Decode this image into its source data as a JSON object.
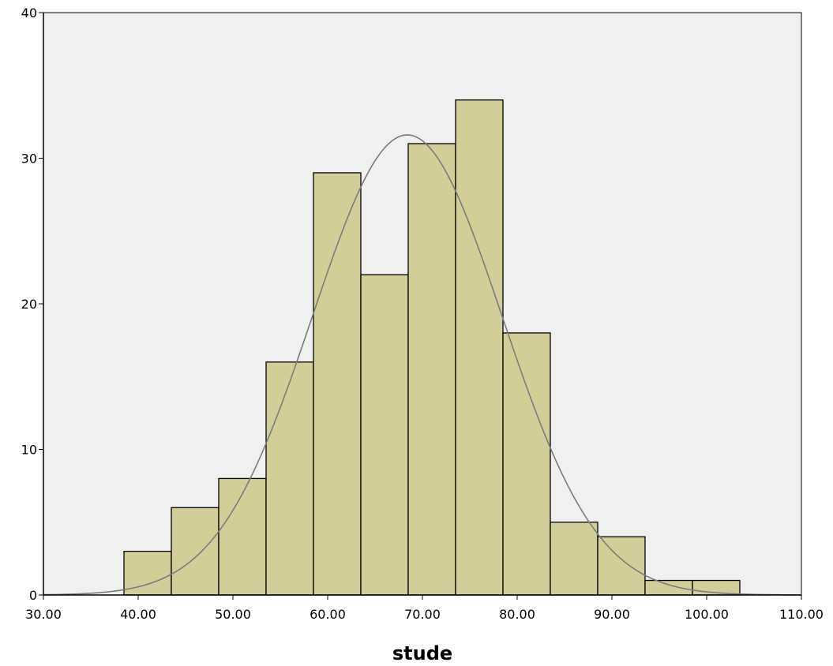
{
  "chart_data": {
    "type": "bar",
    "xlabel": "stude",
    "ylabel": "",
    "xlim": [
      30,
      110
    ],
    "ylim": [
      0,
      40
    ],
    "x_ticks": [
      "30.00",
      "40.00",
      "50.00",
      "60.00",
      "70.00",
      "80.00",
      "90.00",
      "100.00",
      "110.00"
    ],
    "y_ticks": [
      "0",
      "10",
      "20",
      "30",
      "40"
    ],
    "bins": [
      {
        "start": 38.5,
        "end": 43.5,
        "count": 3
      },
      {
        "start": 43.5,
        "end": 48.5,
        "count": 6
      },
      {
        "start": 48.5,
        "end": 53.5,
        "count": 8
      },
      {
        "start": 53.5,
        "end": 58.5,
        "count": 16
      },
      {
        "start": 58.5,
        "end": 63.5,
        "count": 29
      },
      {
        "start": 63.5,
        "end": 68.5,
        "count": 22
      },
      {
        "start": 68.5,
        "end": 73.5,
        "count": 31
      },
      {
        "start": 73.5,
        "end": 78.5,
        "count": 34
      },
      {
        "start": 78.5,
        "end": 83.5,
        "count": 18
      },
      {
        "start": 83.5,
        "end": 88.5,
        "count": 5
      },
      {
        "start": 88.5,
        "end": 93.5,
        "count": 4
      },
      {
        "start": 93.5,
        "end": 98.5,
        "count": 1
      },
      {
        "start": 98.5,
        "end": 103.5,
        "count": 1
      }
    ],
    "normal_curve": {
      "mean": 68.4,
      "std": 10.0,
      "peak": 31.6
    },
    "grid": false,
    "colors": {
      "bar_fill": "#d3ce98",
      "bar_stroke": "#000000",
      "plot_background": "#f0f0f0",
      "curve": "#7a7a7a"
    }
  }
}
